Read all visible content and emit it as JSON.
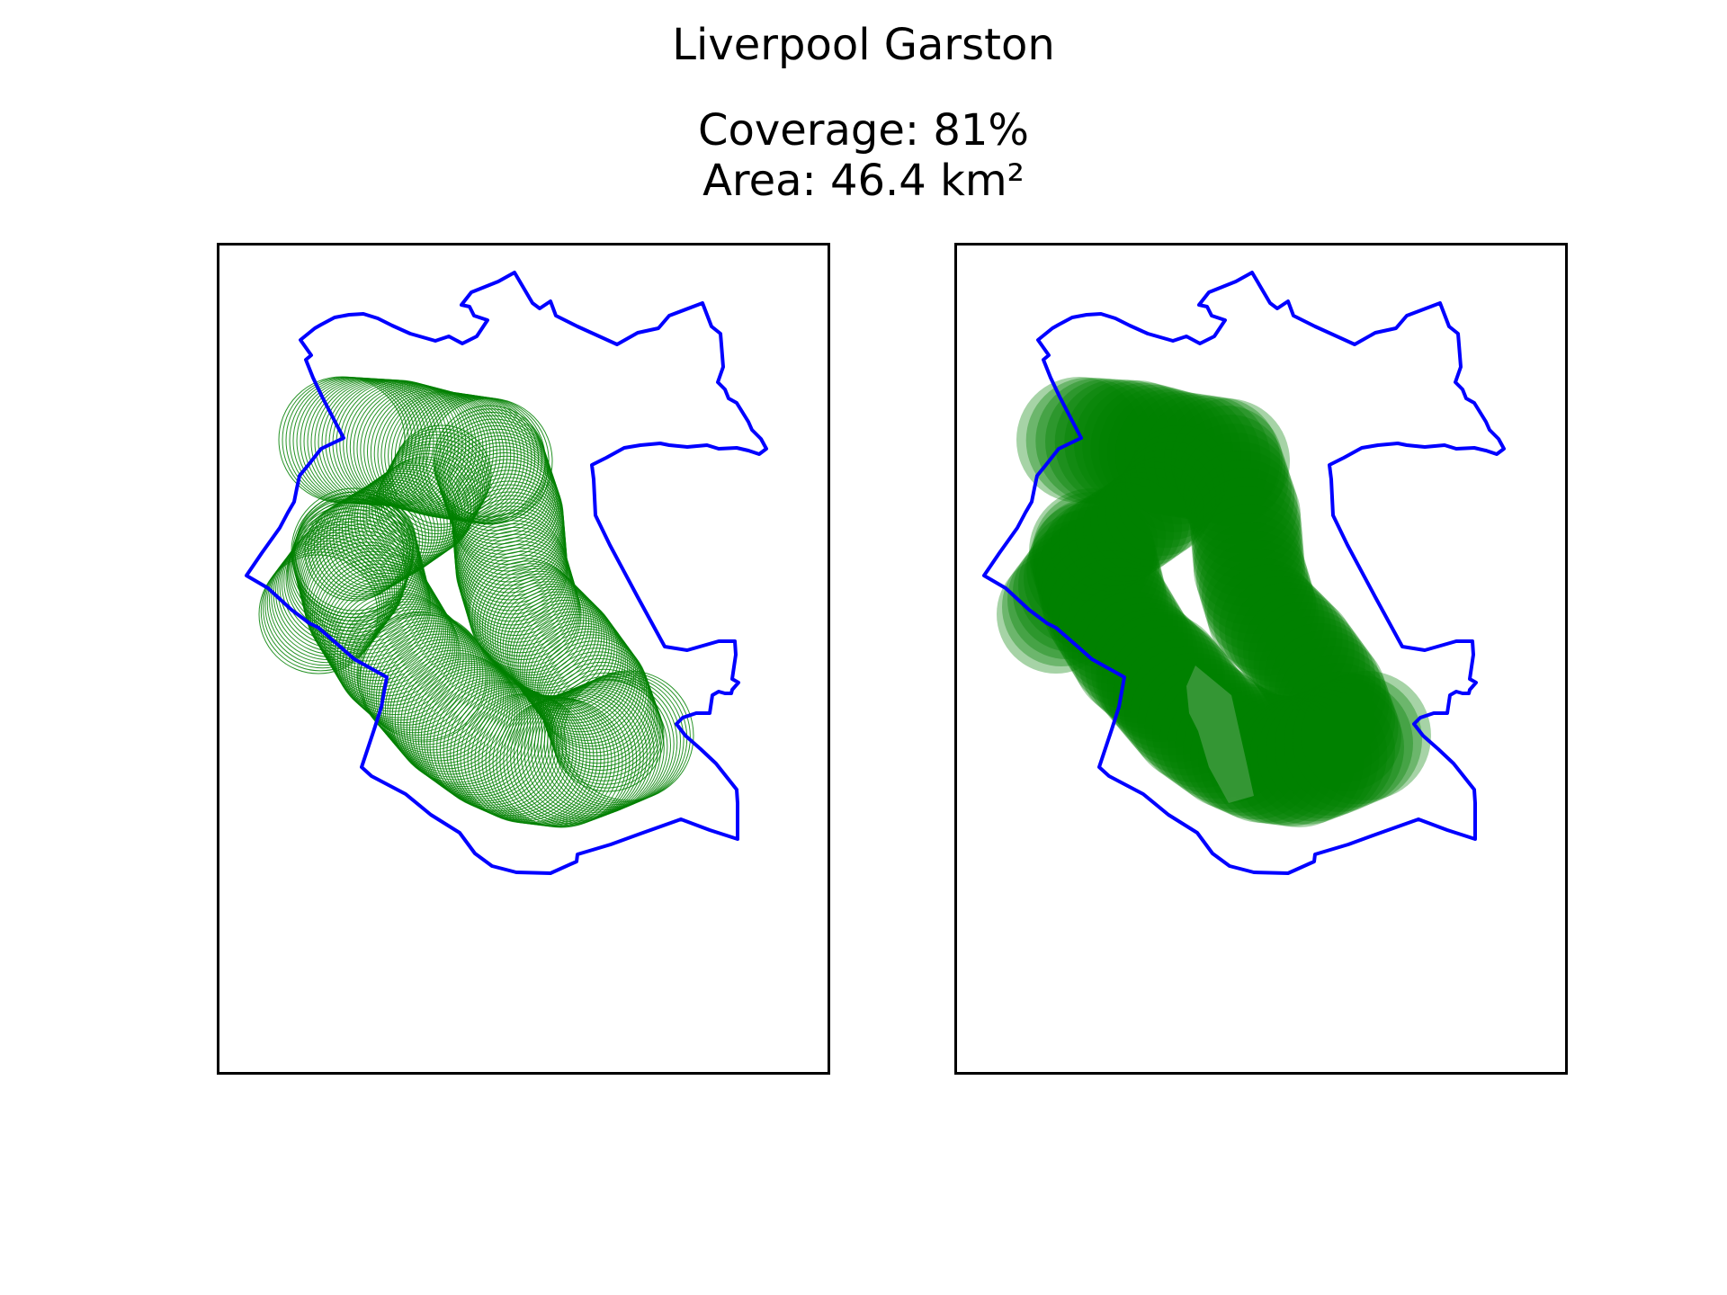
{
  "figure": {
    "title": "Liverpool Garston",
    "coverage_label": "Coverage: 81%",
    "area_label": "Area: 46.4 km²"
  },
  "colors": {
    "boundary": "#0000ff",
    "coverage": "#008000",
    "frame": "#000000",
    "background": "#ffffff"
  },
  "panels": [
    {
      "id": "left",
      "style": "circle outlines"
    },
    {
      "id": "right",
      "style": "filled circles"
    }
  ]
}
